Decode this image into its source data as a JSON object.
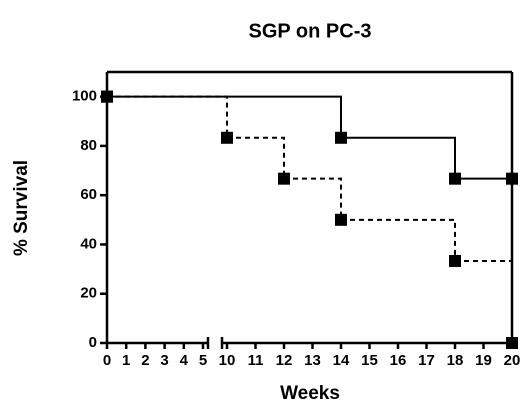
{
  "chart_data": {
    "type": "line",
    "step": true,
    "title": "SGP on PC-3",
    "xlabel": "Weeks",
    "ylabel": "% Survival",
    "xlim": [
      0,
      20
    ],
    "x_break": [
      5,
      10
    ],
    "xticks": [
      0,
      1,
      2,
      3,
      4,
      5,
      10,
      11,
      12,
      13,
      14,
      15,
      16,
      17,
      18,
      19,
      20
    ],
    "ylim": [
      0,
      110
    ],
    "yticks": [
      0,
      20,
      40,
      60,
      80,
      100
    ],
    "series": [
      {
        "color": "#000000",
        "linestyle": "solid",
        "x": [
          0,
          14,
          18,
          20
        ],
        "values": [
          100,
          83.3,
          66.7,
          66.7
        ]
      },
      {
        "color": "#000000",
        "linestyle": "dashed",
        "x": [
          0,
          10,
          12,
          14,
          18,
          20
        ],
        "values": [
          100,
          83.3,
          66.7,
          50,
          33.3,
          0
        ]
      }
    ]
  }
}
